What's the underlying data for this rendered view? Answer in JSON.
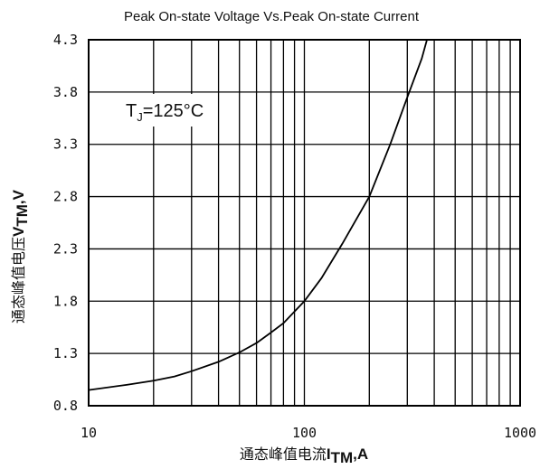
{
  "chart_data": {
    "type": "line",
    "title": "Peak On-state Voltage Vs.Peak On-state Current",
    "xlabel_prefix": "通态峰值电流",
    "xlabel_symbol": "I",
    "xlabel_sub": "TM",
    "xlabel_unit": ",A",
    "ylabel_prefix": "通态峰值电压",
    "ylabel_symbol": "V",
    "ylabel_sub": "TM",
    "ylabel_unit": ",V",
    "x_scale": "log",
    "xlim": [
      10,
      1000
    ],
    "ylim": [
      0.8,
      4.3
    ],
    "x_tick_labels": [
      "10",
      "100",
      "1000"
    ],
    "y_tick_labels": [
      "4.3",
      "3.8",
      "3.3",
      "2.8",
      "2.3",
      "1.8",
      "1.3",
      "0.8"
    ],
    "grid": true,
    "annotation_main": "T",
    "annotation_sub": "J",
    "annotation_rest": "=125°C",
    "series": [
      {
        "x": [
          10,
          15,
          20,
          25,
          30,
          40,
          50,
          60,
          70,
          80,
          100,
          120,
          150,
          200,
          250,
          300,
          350,
          370
        ],
        "y": [
          0.95,
          1.0,
          1.04,
          1.08,
          1.13,
          1.22,
          1.31,
          1.4,
          1.5,
          1.59,
          1.8,
          2.02,
          2.35,
          2.8,
          3.3,
          3.75,
          4.12,
          4.3
        ]
      }
    ]
  }
}
